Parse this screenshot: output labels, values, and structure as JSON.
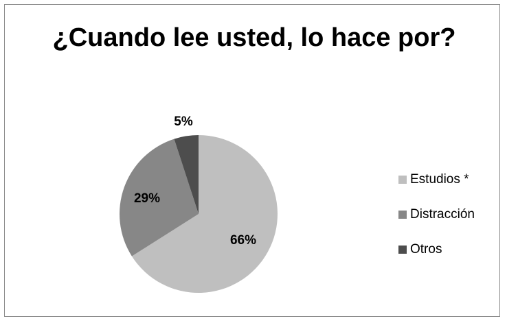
{
  "chart_data": {
    "type": "pie",
    "title": "¿Cuando lee usted, lo hace por?",
    "categories": [
      "Estudios *",
      "Distracción",
      "Otros"
    ],
    "values": [
      66,
      29,
      5
    ],
    "labels": [
      "66%",
      "29%",
      "5%"
    ],
    "colors": [
      "#BFBFBF",
      "#878787",
      "#4D4D4D"
    ],
    "legend_position": "right"
  }
}
